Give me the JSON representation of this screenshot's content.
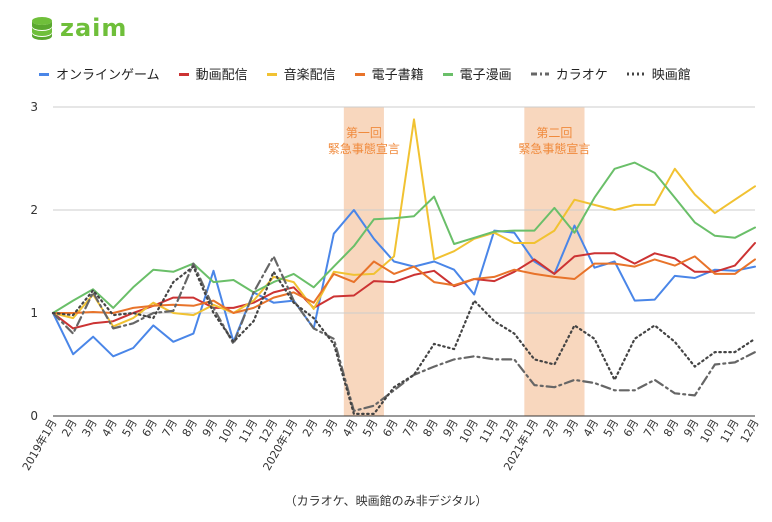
{
  "brand": {
    "logo_text": "zaim",
    "color": "#6fbf3a"
  },
  "footnote": "（カラオケ、映画館のみ非デジタル）",
  "chart_data": {
    "type": "line",
    "x": [
      "2019年1月",
      "2月",
      "3月",
      "4月",
      "5月",
      "6月",
      "7月",
      "8月",
      "9月",
      "10月",
      "11月",
      "12月",
      "2020年1月",
      "2月",
      "3月",
      "4月",
      "5月",
      "6月",
      "7月",
      "8月",
      "9月",
      "10月",
      "11月",
      "12月",
      "2021年1月",
      "2月",
      "3月",
      "4月",
      "5月",
      "6月",
      "7月",
      "8月",
      "9月",
      "10月",
      "11月",
      "12月"
    ],
    "ylim": [
      0,
      3
    ],
    "yticks": [
      "0",
      "1",
      "2",
      "3"
    ],
    "grid": true,
    "legend_position": "top",
    "annotations": [
      {
        "from_index": 15,
        "to_index": 16,
        "line1": "第一回",
        "line2": "緊急事態宣言",
        "color": "#f5c9a8",
        "text_color": "#f08a3c"
      },
      {
        "from_index": 24,
        "to_index": 26,
        "line1": "第二回",
        "line2": "緊急事態宣言",
        "color": "#f5c9a8",
        "text_color": "#f08a3c"
      }
    ],
    "series": [
      {
        "name": "オンラインゲーム",
        "color": "#4a86e8",
        "dash": "solid",
        "values": [
          1.0,
          0.6,
          0.77,
          0.58,
          0.66,
          0.88,
          0.72,
          0.8,
          1.41,
          0.72,
          1.2,
          1.1,
          1.12,
          0.85,
          1.77,
          2.0,
          1.72,
          1.5,
          1.45,
          1.5,
          1.42,
          1.18,
          1.8,
          1.78,
          1.5,
          1.38,
          1.85,
          1.44,
          1.5,
          1.12,
          1.13,
          1.36,
          1.34,
          1.42,
          1.41,
          1.45
        ]
      },
      {
        "name": "動画配信",
        "color": "#cc3333",
        "dash": "solid",
        "values": [
          1.0,
          0.85,
          0.9,
          0.92,
          1.0,
          1.07,
          1.15,
          1.15,
          1.05,
          1.05,
          1.1,
          1.2,
          1.25,
          1.05,
          1.16,
          1.17,
          1.31,
          1.3,
          1.37,
          1.41,
          1.26,
          1.33,
          1.31,
          1.4,
          1.52,
          1.38,
          1.55,
          1.58,
          1.58,
          1.48,
          1.58,
          1.53,
          1.4,
          1.4,
          1.46,
          1.68
        ]
      },
      {
        "name": "音楽配信",
        "color": "#f1c232",
        "dash": "solid",
        "values": [
          1.0,
          0.95,
          1.18,
          0.87,
          0.95,
          1.1,
          1.0,
          0.98,
          1.08,
          1.0,
          1.12,
          1.35,
          1.3,
          1.04,
          1.4,
          1.37,
          1.38,
          1.55,
          2.88,
          1.52,
          1.6,
          1.72,
          1.78,
          1.68,
          1.68,
          1.8,
          2.1,
          2.05,
          2.0,
          2.05,
          2.05,
          2.4,
          2.15,
          1.97,
          2.1,
          2.23
        ]
      },
      {
        "name": "電子書籍",
        "color": "#e8732a",
        "dash": "solid",
        "values": [
          1.0,
          1.0,
          1.01,
          1.0,
          1.05,
          1.07,
          1.08,
          1.07,
          1.12,
          1.0,
          1.05,
          1.15,
          1.2,
          1.1,
          1.38,
          1.3,
          1.5,
          1.38,
          1.45,
          1.3,
          1.27,
          1.33,
          1.35,
          1.42,
          1.38,
          1.35,
          1.33,
          1.48,
          1.48,
          1.45,
          1.52,
          1.46,
          1.55,
          1.38,
          1.38,
          1.52
        ]
      },
      {
        "name": "電子漫画",
        "color": "#6abf69",
        "dash": "solid",
        "values": [
          1.0,
          1.12,
          1.23,
          1.05,
          1.25,
          1.42,
          1.4,
          1.48,
          1.3,
          1.32,
          1.2,
          1.3,
          1.38,
          1.25,
          1.45,
          1.65,
          1.91,
          1.92,
          1.94,
          2.13,
          1.67,
          1.73,
          1.79,
          1.8,
          1.8,
          2.02,
          1.78,
          2.12,
          2.4,
          2.46,
          2.36,
          2.12,
          1.88,
          1.75,
          1.73,
          1.83
        ]
      },
      {
        "name": "カラオケ",
        "color": "#666666",
        "dash": "dashdot",
        "values": [
          1.0,
          0.8,
          1.2,
          0.85,
          0.9,
          1.0,
          1.02,
          1.48,
          1.05,
          0.7,
          1.2,
          1.55,
          1.12,
          0.85,
          0.75,
          0.05,
          0.1,
          0.25,
          0.4,
          0.48,
          0.55,
          0.58,
          0.55,
          0.55,
          0.3,
          0.28,
          0.35,
          0.32,
          0.25,
          0.25,
          0.35,
          0.22,
          0.2,
          0.5,
          0.52,
          0.62
        ]
      },
      {
        "name": "映画館",
        "color": "#444444",
        "dash": "dotted",
        "values": [
          1.0,
          0.98,
          1.22,
          0.98,
          1.0,
          0.95,
          1.3,
          1.45,
          1.0,
          0.72,
          0.92,
          1.4,
          1.1,
          0.95,
          0.7,
          0.02,
          0.02,
          0.28,
          0.4,
          0.7,
          0.65,
          1.12,
          0.92,
          0.8,
          0.55,
          0.5,
          0.88,
          0.75,
          0.35,
          0.75,
          0.88,
          0.72,
          0.48,
          0.62,
          0.62,
          0.75
        ]
      }
    ]
  }
}
